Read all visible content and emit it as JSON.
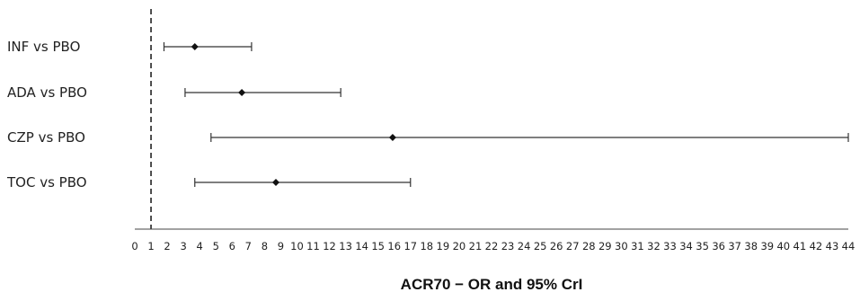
{
  "chart_data": {
    "type": "forest",
    "xlabel": "ACR70 − OR and 95% CrI",
    "reference_line": 1,
    "xlim": [
      0,
      44
    ],
    "x_ticks": [
      0,
      1,
      2,
      3,
      4,
      5,
      6,
      7,
      8,
      9,
      10,
      11,
      12,
      13,
      14,
      15,
      16,
      17,
      18,
      19,
      20,
      21,
      22,
      23,
      24,
      25,
      26,
      27,
      28,
      29,
      30,
      31,
      32,
      33,
      34,
      35,
      36,
      37,
      38,
      39,
      40,
      41,
      42,
      43,
      44
    ],
    "rows": [
      {
        "label": "INF vs PBO",
        "estimate": 3.7,
        "lower": 1.8,
        "upper": 7.2
      },
      {
        "label": "ADA vs PBO",
        "estimate": 6.6,
        "lower": 3.1,
        "upper": 12.7
      },
      {
        "label": "CZP vs PBO",
        "estimate": 15.9,
        "lower": 4.7,
        "upper": 44.0
      },
      {
        "label": "TOC vs PBO",
        "estimate": 8.7,
        "lower": 3.7,
        "upper": 17.0
      }
    ]
  }
}
